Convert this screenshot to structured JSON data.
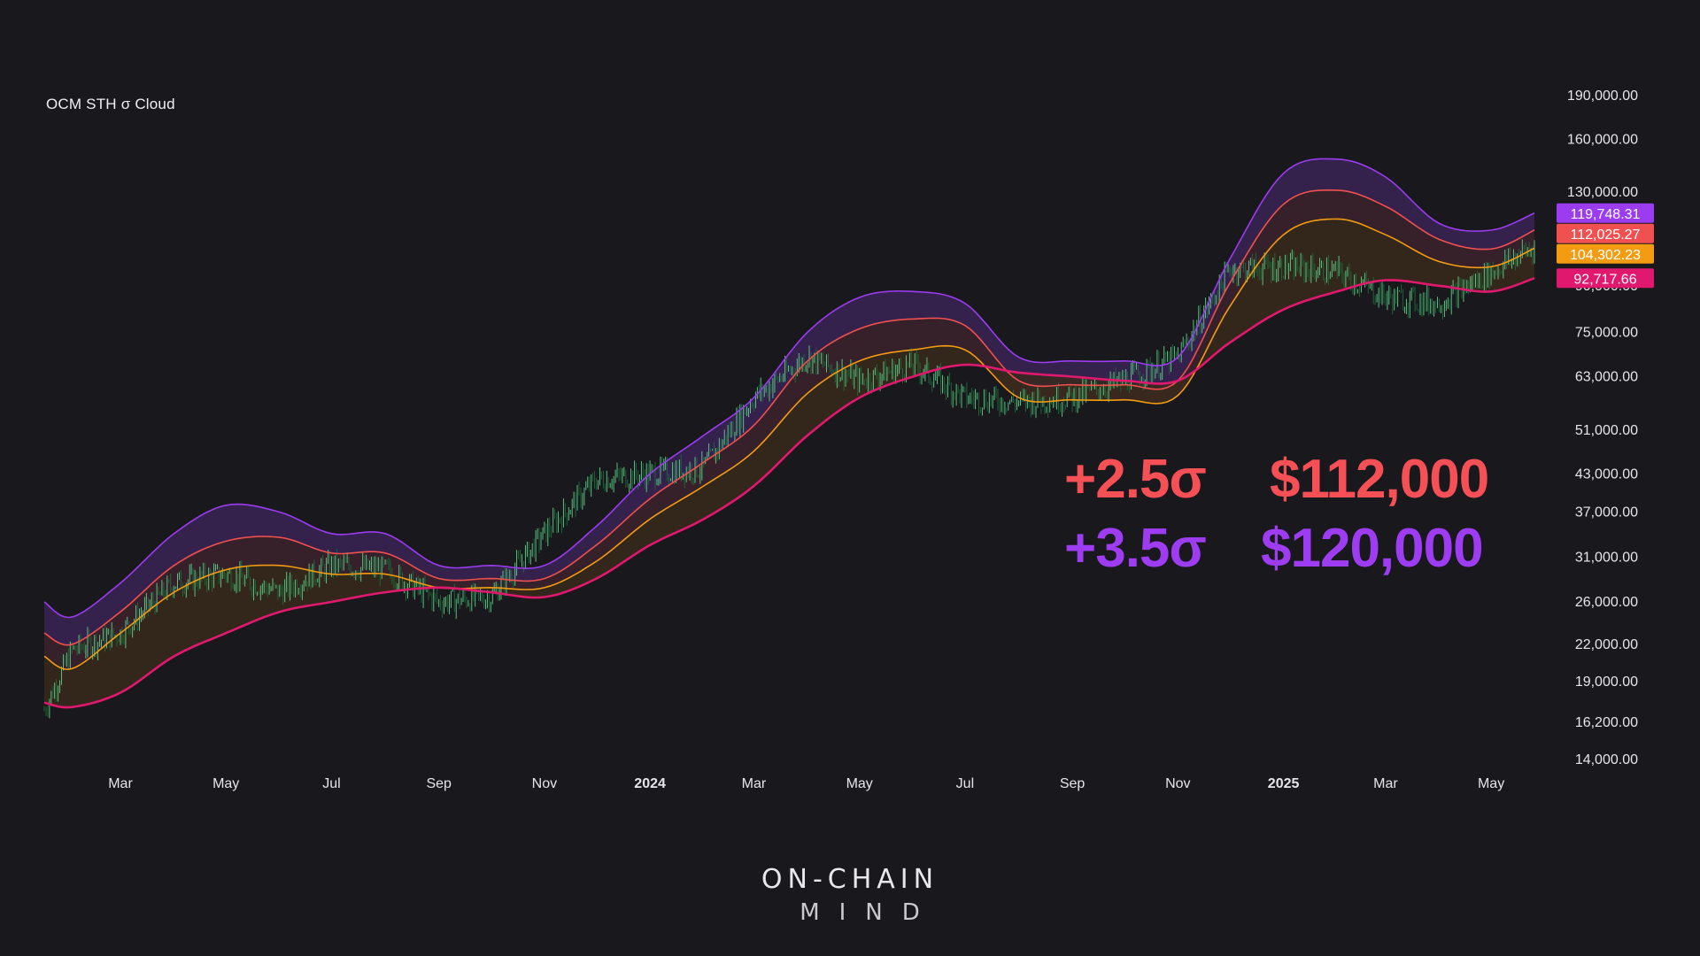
{
  "chart_data": {
    "type": "line",
    "title": "OCM STH σ Cloud",
    "y_scale": "log",
    "ylim": [
      14000,
      190000
    ],
    "y_ticks": [
      {
        "value": 190000,
        "label": "190,000.00"
      },
      {
        "value": 160000,
        "label": "160,000.00"
      },
      {
        "value": 130000,
        "label": "130,000.00"
      },
      {
        "value": 90000,
        "label": "90,000.00"
      },
      {
        "value": 75000,
        "label": "75,000.00"
      },
      {
        "value": 63000,
        "label": "63,000.00"
      },
      {
        "value": 51000,
        "label": "51,000.00"
      },
      {
        "value": 43000,
        "label": "43,000.00"
      },
      {
        "value": 37000,
        "label": "37,000.00"
      },
      {
        "value": 31000,
        "label": "31,000.00"
      },
      {
        "value": 26000,
        "label": "26,000.00"
      },
      {
        "value": 22000,
        "label": "22,000.00"
      },
      {
        "value": 19000,
        "label": "19,000.00"
      },
      {
        "value": 16200,
        "label": "16,200.00"
      },
      {
        "value": 14000,
        "label": "14,000.00"
      }
    ],
    "x_range": [
      "2023-01-16",
      "2025-05-26"
    ],
    "x_ticks": [
      {
        "date": "2023-03-01",
        "label": "Mar",
        "bold": false
      },
      {
        "date": "2023-05-01",
        "label": "May",
        "bold": false
      },
      {
        "date": "2023-07-01",
        "label": "Jul",
        "bold": false
      },
      {
        "date": "2023-09-01",
        "label": "Sep",
        "bold": false
      },
      {
        "date": "2023-11-01",
        "label": "Nov",
        "bold": false
      },
      {
        "date": "2024-01-01",
        "label": "2024",
        "bold": true
      },
      {
        "date": "2024-03-01",
        "label": "Mar",
        "bold": false
      },
      {
        "date": "2024-05-01",
        "label": "May",
        "bold": false
      },
      {
        "date": "2024-07-01",
        "label": "Jul",
        "bold": false
      },
      {
        "date": "2024-09-01",
        "label": "Sep",
        "bold": false
      },
      {
        "date": "2024-11-01",
        "label": "Nov",
        "bold": false
      },
      {
        "date": "2025-01-01",
        "label": "2025",
        "bold": true
      },
      {
        "date": "2025-03-01",
        "label": "Mar",
        "bold": false
      },
      {
        "date": "2025-05-01",
        "label": "May",
        "bold": false
      }
    ],
    "dates": [
      "2023-01-16",
      "2023-02-01",
      "2023-03-01",
      "2023-04-01",
      "2023-05-01",
      "2023-06-01",
      "2023-07-01",
      "2023-08-01",
      "2023-09-01",
      "2023-10-01",
      "2023-11-01",
      "2023-12-01",
      "2024-01-01",
      "2024-02-01",
      "2024-03-01",
      "2024-04-01",
      "2024-05-01",
      "2024-06-01",
      "2024-07-01",
      "2024-08-01",
      "2024-09-01",
      "2024-10-01",
      "2024-11-01",
      "2024-12-01",
      "2025-01-01",
      "2025-02-01",
      "2025-03-01",
      "2025-04-01",
      "2025-05-01",
      "2025-05-26"
    ],
    "series": [
      {
        "name": "",
        "color": "#9b3cf0",
        "values": [
          26000,
          24500,
          28000,
          34000,
          38000,
          37000,
          34000,
          34000,
          30000,
          30000,
          30000,
          35000,
          43000,
          50000,
          58000,
          75000,
          86000,
          88000,
          84000,
          68000,
          67000,
          67000,
          68000,
          100000,
          140000,
          148000,
          138000,
          115000,
          112000,
          119748.31
        ]
      },
      {
        "name": "",
        "color": "#f0504f",
        "values": [
          23000,
          22000,
          25000,
          30000,
          33000,
          33500,
          31500,
          31500,
          28500,
          28500,
          28500,
          32500,
          39000,
          45000,
          52000,
          67000,
          76000,
          79000,
          77000,
          62000,
          61000,
          61000,
          62000,
          91000,
          124000,
          131000,
          123000,
          108000,
          104000,
          112025.27
        ]
      },
      {
        "name": "",
        "color": "#f39c12",
        "values": [
          21000,
          20000,
          23000,
          27000,
          29500,
          30000,
          29000,
          29000,
          27500,
          27500,
          27500,
          30500,
          36000,
          41000,
          47000,
          59000,
          67000,
          70000,
          70000,
          58000,
          57500,
          57500,
          58500,
          83000,
          110000,
          117000,
          110000,
          99000,
          97000,
          104302.23
        ]
      },
      {
        "name": "",
        "color": "#e0196f",
        "values": [
          17500,
          17200,
          18200,
          21000,
          23000,
          25000,
          26000,
          27000,
          27500,
          27000,
          26500,
          28500,
          32500,
          36000,
          41000,
          50000,
          58000,
          63000,
          66000,
          64000,
          63000,
          62000,
          62000,
          72000,
          82000,
          88000,
          92000,
          90000,
          88000,
          92717.66
        ]
      },
      {
        "name": "",
        "color": "#4ec27a",
        "values": [
          17000,
          21500,
          23000,
          28000,
          29000,
          27000,
          30000,
          29500,
          26000,
          26500,
          34000,
          42000,
          43000,
          44000,
          58000,
          68000,
          62000,
          66000,
          58000,
          57000,
          58000,
          62000,
          68000,
          96000,
          97000,
          95000,
          86000,
          84000,
          95000,
          105000
        ]
      }
    ],
    "price_labels": [
      {
        "text": "119,748.31",
        "value": 119748.31,
        "color": "#9b3cf0"
      },
      {
        "text": "112,025.27",
        "value": 112025.27,
        "color": "#f0504f"
      },
      {
        "text": "104,302.23",
        "value": 104302.23,
        "color": "#f39c12"
      },
      {
        "text": "92,717.66",
        "value": 92717.66,
        "color": "#e0196f"
      }
    ],
    "grid": false,
    "legend": "none"
  },
  "callouts": {
    "row1_sigma": "+2.5σ",
    "row1_price": "$112,000",
    "row2_sigma": "+3.5σ",
    "row2_price": "$120,000",
    "row1_color": "#f45055",
    "row2_color": "#9d3cf0"
  },
  "brand": {
    "line1": "ON-CHAIN",
    "line2": "MIND"
  },
  "colors": {
    "background": "#19181d",
    "axis_text": "#e6e6ea"
  }
}
